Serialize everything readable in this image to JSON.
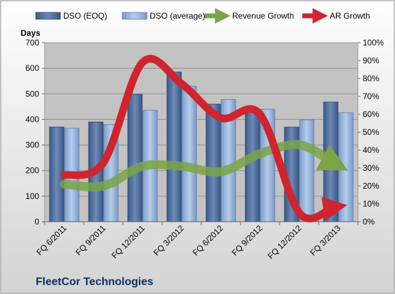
{
  "chart_data": {
    "type": "bar",
    "title": "FleetCor Technologies",
    "categories": [
      "FQ 6/2011",
      "FQ 9/2011",
      "FQ 12/2011",
      "FQ 3/2012",
      "FQ 6/2012",
      "FQ 9/2012",
      "FQ 12/2012",
      "FQ 3/2013"
    ],
    "ylabel": "Days",
    "ylim": [
      0,
      700
    ],
    "y_ticks": [
      "0",
      "100",
      "200",
      "300",
      "400",
      "500",
      "600",
      "700"
    ],
    "y2lim": [
      0,
      1.0
    ],
    "y2_ticks": [
      "0%",
      "10%",
      "20%",
      "30%",
      "40%",
      "50%",
      "60%",
      "70%",
      "80%",
      "90%",
      "100%"
    ],
    "grid": true,
    "legend_position": "top",
    "series": [
      {
        "name": "DSO (EOQ)",
        "kind": "bar",
        "axis": "left",
        "color": "#4f6d9a",
        "values": [
          370,
          390,
          498,
          585,
          460,
          440,
          370,
          468
        ]
      },
      {
        "name": "DSO (average)",
        "kind": "bar",
        "axis": "left",
        "color": "#8fb0dc",
        "values": [
          366,
          380,
          436,
          530,
          478,
          440,
          398,
          426
        ]
      },
      {
        "name": "Revenue Growth",
        "kind": "line",
        "axis": "right",
        "color": "#7aa446",
        "values": [
          0.21,
          0.2,
          0.31,
          0.31,
          0.28,
          0.38,
          0.43,
          0.33
        ]
      },
      {
        "name": "AR Growth",
        "kind": "line",
        "axis": "right",
        "color": "#d0242e",
        "values": [
          0.26,
          0.33,
          0.89,
          0.77,
          0.58,
          0.6,
          0.05,
          0.08
        ]
      }
    ]
  }
}
